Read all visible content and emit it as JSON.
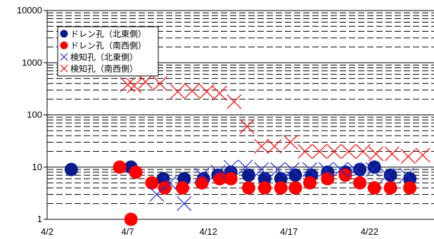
{
  "chart_data": {
    "type": "scatter",
    "title": "",
    "xlabel": "",
    "ylabel": "",
    "yscale": "log",
    "ylim": [
      1,
      10000
    ],
    "xlim_days": [
      2,
      26
    ],
    "x_ticks": [
      {
        "day": 2,
        "label": "4/2"
      },
      {
        "day": 7,
        "label": "4/7"
      },
      {
        "day": 12,
        "label": "4/12"
      },
      {
        "day": 17,
        "label": "4/17"
      },
      {
        "day": 22,
        "label": "4/22"
      }
    ],
    "y_ticks": [
      {
        "value": 1,
        "label": "1"
      },
      {
        "value": 10,
        "label": "10"
      },
      {
        "value": 100,
        "label": "100"
      },
      {
        "value": 1000,
        "label": "1000"
      },
      {
        "value": 10000,
        "label": "10000"
      }
    ],
    "grid": "horizontal (dashed minor lines)",
    "legend_position": "top-left",
    "series": [
      {
        "name": "ドレン孔（北東側）",
        "marker": "filled-circle",
        "color": "#0a1a8c",
        "points": [
          {
            "x": 3.5,
            "y": 9
          },
          {
            "x": 7.2,
            "y": 10
          },
          {
            "x": 9.2,
            "y": 6
          },
          {
            "x": 10.5,
            "y": 6
          },
          {
            "x": 11.7,
            "y": 6
          },
          {
            "x": 12.6,
            "y": 7
          },
          {
            "x": 13.4,
            "y": 8
          },
          {
            "x": 14.5,
            "y": 7
          },
          {
            "x": 15.5,
            "y": 6
          },
          {
            "x": 16.5,
            "y": 6
          },
          {
            "x": 17.4,
            "y": 7
          },
          {
            "x": 18.4,
            "y": 7
          },
          {
            "x": 19.4,
            "y": 8
          },
          {
            "x": 20.5,
            "y": 8
          },
          {
            "x": 21.4,
            "y": 9
          },
          {
            "x": 22.3,
            "y": 10
          },
          {
            "x": 23.3,
            "y": 7
          },
          {
            "x": 24.5,
            "y": 6
          }
        ]
      },
      {
        "name": "ドレン孔（南西側）",
        "marker": "filled-circle",
        "color": "#ff0000",
        "points": [
          {
            "x": 6.5,
            "y": 10
          },
          {
            "x": 7.5,
            "y": 8
          },
          {
            "x": 8.5,
            "y": 5
          },
          {
            "x": 9.3,
            "y": 4
          },
          {
            "x": 10.4,
            "y": 4
          },
          {
            "x": 11.6,
            "y": 5
          },
          {
            "x": 12.7,
            "y": 6
          },
          {
            "x": 13.4,
            "y": 6
          },
          {
            "x": 14.5,
            "y": 4
          },
          {
            "x": 15.5,
            "y": 4
          },
          {
            "x": 16.5,
            "y": 4
          },
          {
            "x": 17.4,
            "y": 4
          },
          {
            "x": 18.3,
            "y": 5
          },
          {
            "x": 19.4,
            "y": 6
          },
          {
            "x": 20.5,
            "y": 7
          },
          {
            "x": 21.4,
            "y": 5
          },
          {
            "x": 22.3,
            "y": 4
          },
          {
            "x": 23.3,
            "y": 4
          },
          {
            "x": 24.5,
            "y": 4
          },
          {
            "x": 7.2,
            "y": 1
          }
        ]
      },
      {
        "name": "検知孔（北東側）",
        "marker": "x",
        "color": "#1a2fd6",
        "points": [
          {
            "x": 8.8,
            "y": 3
          },
          {
            "x": 9.6,
            "y": 5
          },
          {
            "x": 10.5,
            "y": 2
          },
          {
            "x": 11.6,
            "y": 7
          },
          {
            "x": 12.6,
            "y": 8
          },
          {
            "x": 13.4,
            "y": 10
          },
          {
            "x": 14.3,
            "y": 10
          },
          {
            "x": 15.3,
            "y": 9
          },
          {
            "x": 16.3,
            "y": 9
          },
          {
            "x": 17.2,
            "y": 9
          },
          {
            "x": 18.3,
            "y": 9
          },
          {
            "x": 19.3,
            "y": 9
          },
          {
            "x": 20.2,
            "y": 9
          },
          {
            "x": 21.1,
            "y": 9
          },
          {
            "x": 22.2,
            "y": 9
          },
          {
            "x": 23.1,
            "y": 7
          },
          {
            "x": 24.3,
            "y": 7
          }
        ]
      },
      {
        "name": "検知孔（南西側）",
        "marker": "x",
        "color": "#ff0000",
        "points": [
          {
            "x": 7.0,
            "y": 380
          },
          {
            "x": 7.4,
            "y": 360
          },
          {
            "x": 8.1,
            "y": 430
          },
          {
            "x": 9.0,
            "y": 400
          },
          {
            "x": 10.1,
            "y": 280
          },
          {
            "x": 11.0,
            "y": 290
          },
          {
            "x": 11.9,
            "y": 280
          },
          {
            "x": 12.7,
            "y": 260
          },
          {
            "x": 13.6,
            "y": 180
          },
          {
            "x": 14.4,
            "y": 60
          },
          {
            "x": 15.3,
            "y": 25
          },
          {
            "x": 16.1,
            "y": 25
          },
          {
            "x": 17.1,
            "y": 30
          },
          {
            "x": 18.0,
            "y": 20
          },
          {
            "x": 18.9,
            "y": 20
          },
          {
            "x": 19.8,
            "y": 20
          },
          {
            "x": 20.7,
            "y": 20
          },
          {
            "x": 21.6,
            "y": 20
          },
          {
            "x": 22.4,
            "y": 18
          },
          {
            "x": 23.4,
            "y": 18
          },
          {
            "x": 24.4,
            "y": 16
          },
          {
            "x": 25.3,
            "y": 17
          }
        ]
      }
    ]
  }
}
